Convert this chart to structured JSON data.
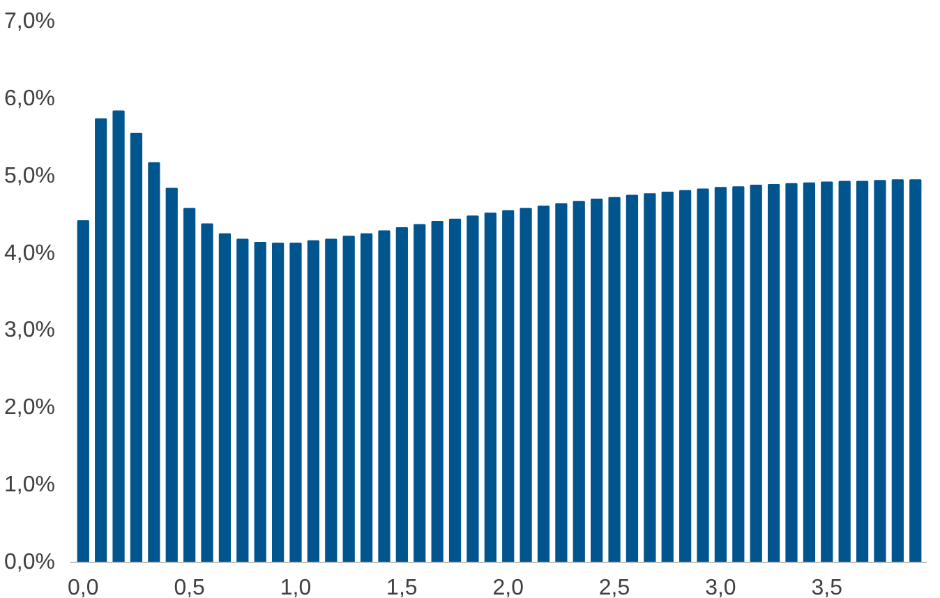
{
  "chart_data": {
    "type": "bar",
    "color": "#00558f",
    "x": [
      0,
      0.0833,
      0.1667,
      0.25,
      0.3333,
      0.4167,
      0.5,
      0.5833,
      0.6667,
      0.75,
      0.8333,
      0.9167,
      1,
      1.0833,
      1.1667,
      1.25,
      1.3333,
      1.4167,
      1.5,
      1.5833,
      1.6667,
      1.75,
      1.8333,
      1.9167,
      2,
      2.0833,
      2.1667,
      2.25,
      2.3333,
      2.4167,
      2.5,
      2.5833,
      2.6667,
      2.75,
      2.8333,
      2.9167,
      3,
      3.0833,
      3.1667,
      3.25,
      3.3333,
      3.4167,
      3.5,
      3.5833,
      3.6667,
      3.75,
      3.8333,
      3.9167
    ],
    "values": [
      4.42,
      5.74,
      5.84,
      5.55,
      5.17,
      4.84,
      4.58,
      4.38,
      4.25,
      4.18,
      4.14,
      4.13,
      4.13,
      4.16,
      4.18,
      4.22,
      4.25,
      4.29,
      4.33,
      4.37,
      4.41,
      4.44,
      4.48,
      4.52,
      4.55,
      4.58,
      4.61,
      4.64,
      4.67,
      4.7,
      4.72,
      4.75,
      4.77,
      4.79,
      4.81,
      4.83,
      4.85,
      4.86,
      4.88,
      4.89,
      4.9,
      4.91,
      4.92,
      4.93,
      4.93,
      4.94,
      4.95,
      4.95
    ],
    "xlim": [
      -0.06,
      3.97
    ],
    "xticks": [
      {
        "value": 0,
        "label": "0,0"
      },
      {
        "value": 0.5,
        "label": "0,5"
      },
      {
        "value": 1,
        "label": "1,0"
      },
      {
        "value": 1.5,
        "label": "1,5"
      },
      {
        "value": 2,
        "label": "2,0"
      },
      {
        "value": 2.5,
        "label": "2,5"
      },
      {
        "value": 3,
        "label": "3,0"
      },
      {
        "value": 3.5,
        "label": "3,5"
      }
    ],
    "ylim": [
      0,
      7
    ],
    "yticks": [
      {
        "value": 0,
        "label": "0,0%"
      },
      {
        "value": 1,
        "label": "1,0%"
      },
      {
        "value": 2,
        "label": "2,0%"
      },
      {
        "value": 3,
        "label": "3,0%"
      },
      {
        "value": 4,
        "label": "4,0%"
      },
      {
        "value": 5,
        "label": "5,0%"
      },
      {
        "value": 6,
        "label": "6,0%"
      },
      {
        "value": 7,
        "label": "7,0%"
      }
    ],
    "grid": false
  }
}
